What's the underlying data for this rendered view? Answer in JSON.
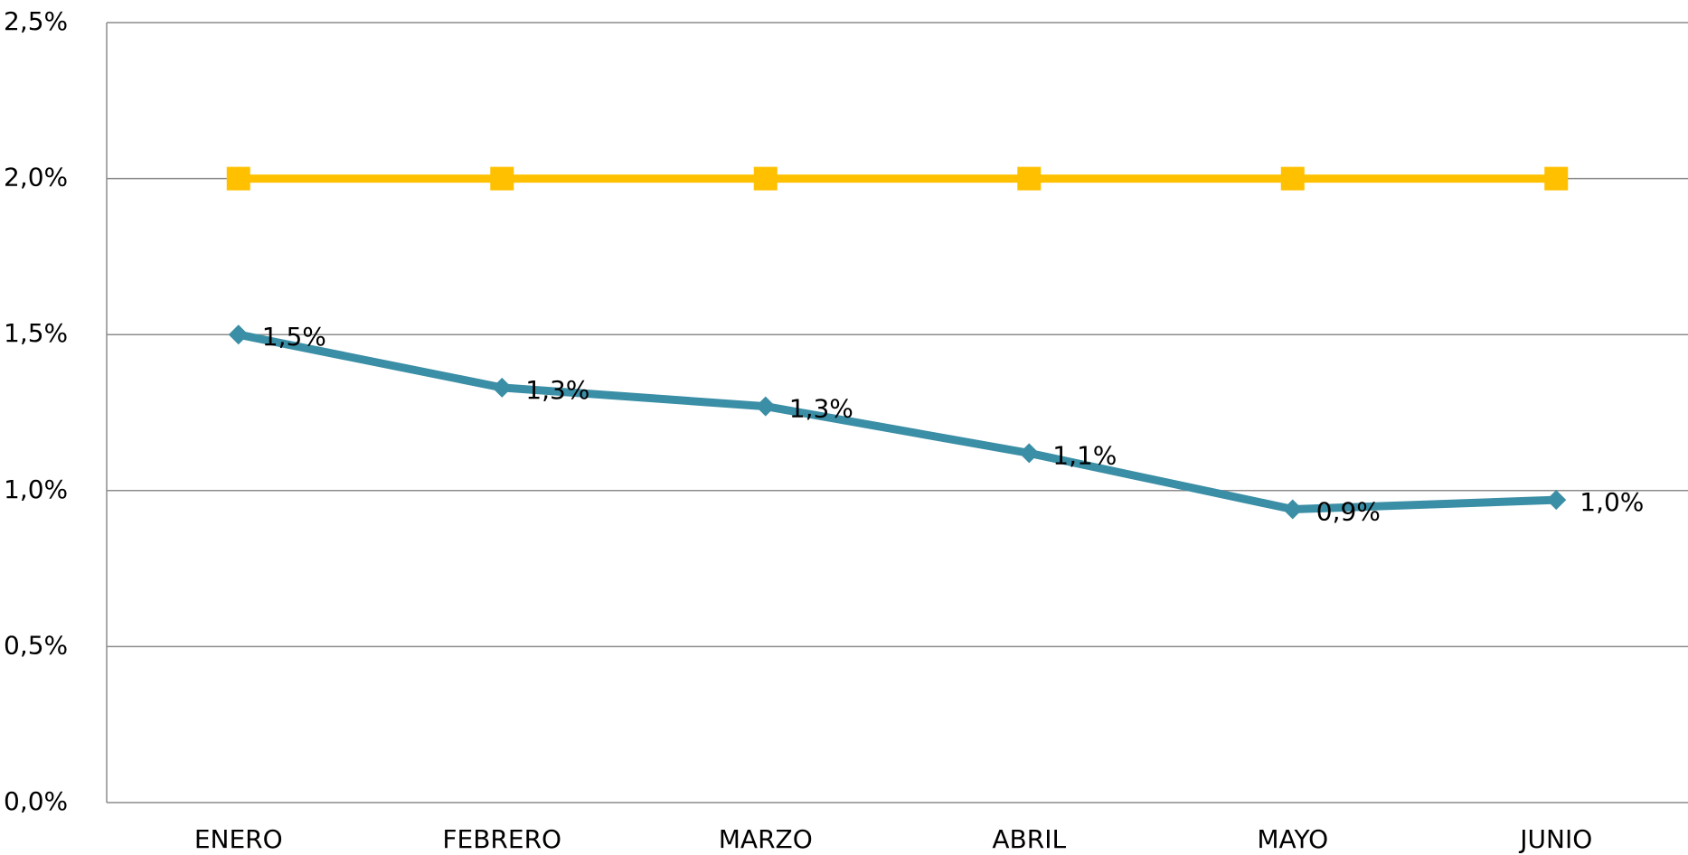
{
  "chart_data": {
    "type": "line",
    "categories": [
      "ENERO",
      "FEBRERO",
      "MARZO",
      "ABRIL",
      "MAYO",
      "JUNIO"
    ],
    "series": [
      {
        "color": "#3a8ea5",
        "marker": "diamond",
        "values": [
          1.5,
          1.33,
          1.27,
          1.12,
          0.94,
          0.97
        ],
        "value_labels": [
          "1,5%",
          "1,3%",
          "1,3%",
          "1,1%",
          "0,9%",
          "1,0%"
        ]
      },
      {
        "color": "#ffc000",
        "marker": "square",
        "values": [
          2.0,
          2.0,
          2.0,
          2.0,
          2.0,
          2.0
        ]
      }
    ],
    "ylim": [
      0,
      2.5
    ],
    "yticks": [
      {
        "value": 0,
        "label": "0,0%"
      },
      {
        "value": 0.5,
        "label": "0,5%"
      },
      {
        "value": 1.0,
        "label": "1,0%"
      },
      {
        "value": 1.5,
        "label": "1,5%"
      },
      {
        "value": 2.0,
        "label": "2,0%"
      },
      {
        "value": 2.5,
        "label": "2,5%"
      }
    ],
    "grid": true
  }
}
